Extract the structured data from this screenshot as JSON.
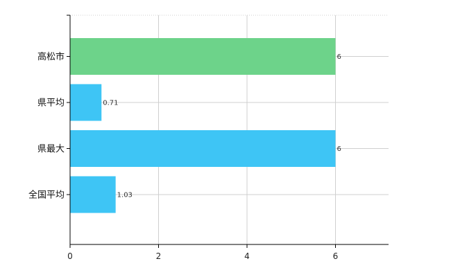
{
  "chart_data": {
    "type": "bar",
    "orientation": "horizontal",
    "categories": [
      "高松市",
      "県平均",
      "県最大",
      "全国平均"
    ],
    "values": [
      6,
      0.71,
      6,
      1.03
    ],
    "data_labels": [
      "6",
      "0.71",
      "6",
      "1.03"
    ],
    "bar_colors": [
      "#6dd38a",
      "#3ec5f5",
      "#3ec5f5",
      "#3ec5f5"
    ],
    "xlim": [
      0,
      7.2
    ],
    "x_ticks": [
      0,
      2,
      4,
      6
    ],
    "grid": true,
    "title": "",
    "xlabel": "",
    "ylabel": ""
  }
}
